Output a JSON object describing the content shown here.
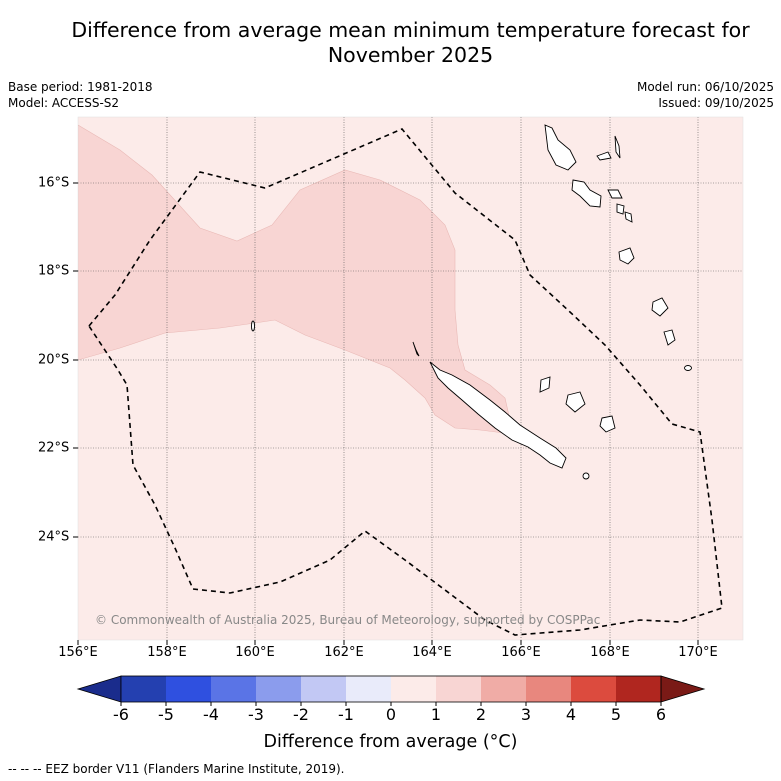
{
  "title": {
    "line1": "Difference from average mean minimum temperature forecast for",
    "line2": "November 2025"
  },
  "meta": {
    "base_period": "Base period: 1981-2018",
    "model": "Model: ACCESS-S2",
    "model_run": "Model run: 06/10/2025",
    "issued": "Issued: 09/10/2025"
  },
  "map": {
    "credit": "© Commonwealth of Australia 2025, Bureau of Meteorology, supported by COSPPac",
    "x_ticks": [
      "156°E",
      "158°E",
      "160°E",
      "162°E",
      "164°E",
      "166°E",
      "168°E",
      "170°E"
    ],
    "y_ticks": [
      "16°S",
      "18°S",
      "20°S",
      "22°S",
      "24°S"
    ],
    "background_anomaly_range": "0 to 1",
    "region_anomaly_range": "1 to 2"
  },
  "colorbar": {
    "labels": [
      "-6",
      "-5",
      "-4",
      "-3",
      "-2",
      "-1",
      "0",
      "1",
      "2",
      "3",
      "4",
      "5",
      "6"
    ],
    "colors": [
      "#1a2c8c",
      "#2440b0",
      "#2f50e0",
      "#5a74e6",
      "#8b9ced",
      "#c2c8f4",
      "#e9ebfa",
      "#fcebe9",
      "#f8d5d3",
      "#f0aca6",
      "#e8877e",
      "#dc4b3e",
      "#b0261f",
      "#7a1a16"
    ],
    "title": "Difference from average (°C)"
  },
  "footnote": "--  --  -- EEZ border V11 (Flanders Marine Institute, 2019)."
}
